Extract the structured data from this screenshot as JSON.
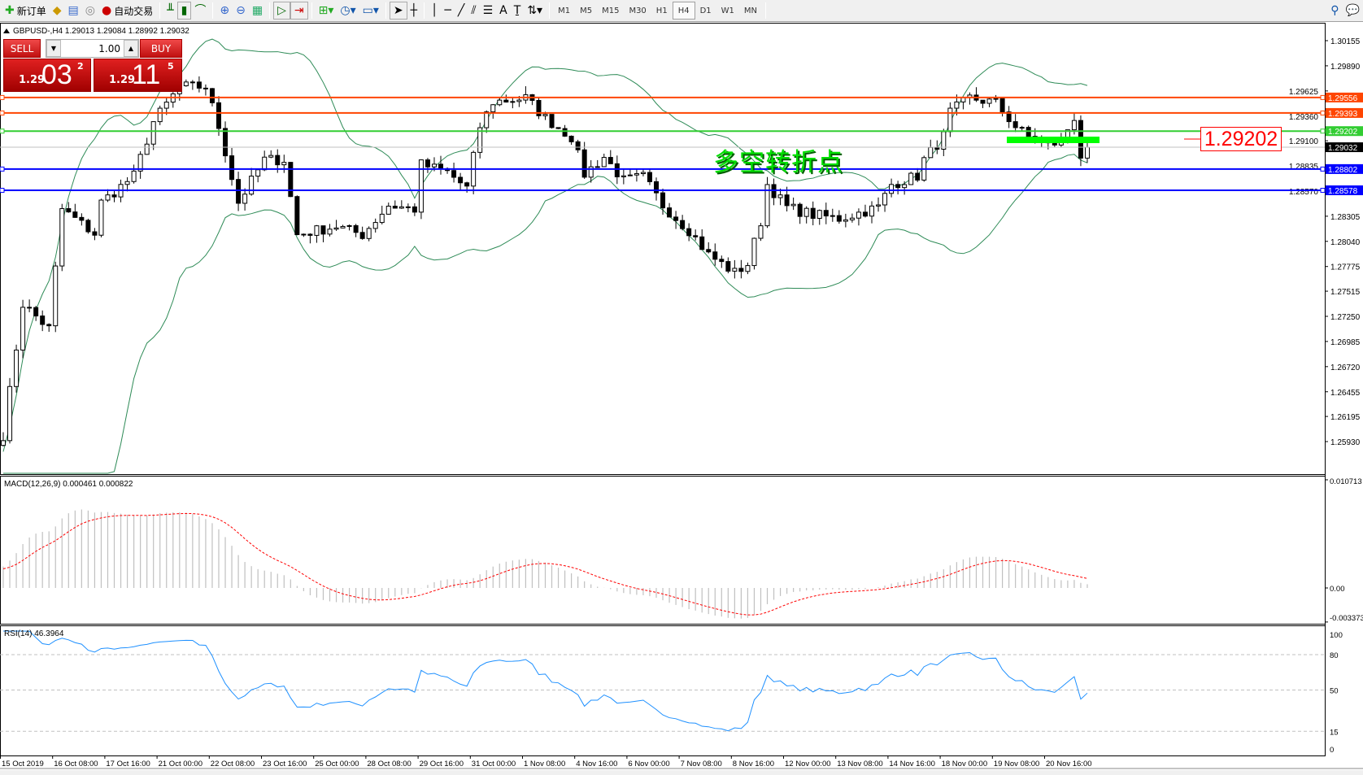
{
  "toolbar": {
    "new_order": "新订单",
    "auto_trading": "自动交易",
    "timeframes": [
      "M1",
      "M5",
      "M15",
      "M30",
      "H1",
      "H4",
      "D1",
      "W1",
      "MN"
    ],
    "active_timeframe": "H4"
  },
  "chart": {
    "header": "GBPUSD-,H4  1.29013 1.29084 1.28992 1.29032",
    "current_price": "1.29032",
    "price_ticks": [
      "1.30155",
      "1.29890",
      "1.29625",
      "1.29360",
      "1.29100",
      "1.28835",
      "1.28570",
      "1.28305",
      "1.28040",
      "1.27775",
      "1.27515",
      "1.27250",
      "1.26985",
      "1.26720",
      "1.26455",
      "1.26195",
      "1.25930"
    ],
    "hlines": [
      {
        "price": "1.29556",
        "color": "#ff4500"
      },
      {
        "price": "1.29393",
        "color": "#ff4500"
      },
      {
        "price": "1.29202",
        "color": "#32cd32"
      },
      {
        "price": "1.28802",
        "color": "#0000ff"
      },
      {
        "price": "1.28578",
        "color": "#0000ff"
      }
    ],
    "annotation_text": "多空转折点",
    "price_label": "1.29202",
    "time_labels": [
      "15 Oct 2019",
      "16 Oct 08:00",
      "17 Oct 16:00",
      "21 Oct 00:00",
      "22 Oct 08:00",
      "23 Oct 16:00",
      "25 Oct 00:00",
      "28 Oct 08:00",
      "29 Oct 16:00",
      "31 Oct 00:00",
      "1 Nov 08:00",
      "4 Nov 16:00",
      "6 Nov 00:00",
      "7 Nov 08:00",
      "8 Nov 16:00",
      "12 Nov 00:00",
      "13 Nov 08:00",
      "14 Nov 16:00",
      "18 Nov 00:00",
      "19 Nov 08:00",
      "20 Nov 16:00"
    ]
  },
  "trade_panel": {
    "sell": "SELL",
    "buy": "BUY",
    "volume": "1.00",
    "sell_small": "1.29",
    "sell_big": "03",
    "sell_pip": "2",
    "buy_small": "1.29",
    "buy_big": "11",
    "buy_pip": "5"
  },
  "macd": {
    "label": "MACD(12,26,9) 0.000461 0.000822",
    "ticks": [
      "0.010713",
      "0.00",
      "-0.003373"
    ]
  },
  "rsi": {
    "label": "RSI(14) 46.3964",
    "ticks": [
      "100",
      "80",
      "50",
      "15",
      "0"
    ]
  },
  "chart_data": {
    "type": "candlestick",
    "symbol": "GBPUSD",
    "timeframe": "H4",
    "ylim": [
      1.2593,
      1.30155
    ],
    "close_waypoints": [
      [
        0,
        1.26
      ],
      [
        3,
        1.2738
      ],
      [
        7,
        1.2712
      ],
      [
        9,
        1.2838
      ],
      [
        14,
        1.2812
      ],
      [
        15,
        1.2845
      ],
      [
        20,
        1.2873
      ],
      [
        23,
        1.293
      ],
      [
        27,
        1.2967
      ],
      [
        31,
        1.2967
      ],
      [
        33,
        1.2925
      ],
      [
        36,
        1.2845
      ],
      [
        40,
        1.289
      ],
      [
        43,
        1.289
      ],
      [
        45,
        1.2811
      ],
      [
        51,
        1.282
      ],
      [
        55,
        1.2811
      ],
      [
        59,
        1.2842
      ],
      [
        63,
        1.2838
      ],
      [
        64,
        1.2885
      ],
      [
        68,
        1.2877
      ],
      [
        71,
        1.286
      ],
      [
        73,
        1.2925
      ],
      [
        75,
        1.2951
      ],
      [
        80,
        1.2955
      ],
      [
        83,
        1.2934
      ],
      [
        87,
        1.2914
      ],
      [
        89,
        1.2875
      ],
      [
        92,
        1.2893
      ],
      [
        95,
        1.2868
      ],
      [
        98,
        1.2872
      ],
      [
        101,
        1.2842
      ],
      [
        105,
        1.2816
      ],
      [
        108,
        1.279
      ],
      [
        112,
        1.2771
      ],
      [
        114,
        1.278
      ],
      [
        116,
        1.2825
      ],
      [
        117,
        1.2864
      ],
      [
        120,
        1.284
      ],
      [
        124,
        1.2832
      ],
      [
        128,
        1.2828
      ],
      [
        132,
        1.2836
      ],
      [
        134,
        1.284
      ],
      [
        136,
        1.2864
      ],
      [
        140,
        1.2873
      ],
      [
        141,
        1.289
      ],
      [
        144,
        1.2915
      ],
      [
        145,
        1.294
      ],
      [
        148,
        1.2955
      ],
      [
        152,
        1.295
      ],
      [
        155,
        1.2925
      ],
      [
        157,
        1.2914
      ],
      [
        160,
        1.2905
      ],
      [
        162,
        1.291
      ],
      [
        164,
        1.2935
      ],
      [
        165,
        1.2894
      ],
      [
        166,
        1.29032
      ]
    ],
    "indicators": [
      "Bollinger Bands",
      "MACD(12,26,9)",
      "RSI(14)"
    ],
    "rsi_levels": [
      80,
      50,
      15
    ]
  }
}
